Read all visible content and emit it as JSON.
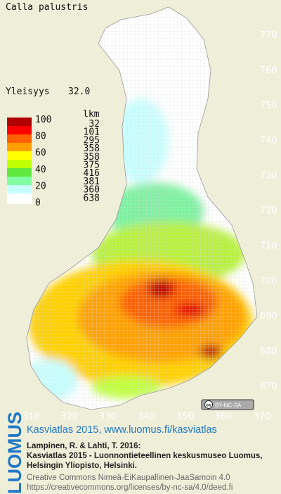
{
  "title": "Calla palustris",
  "frequency": {
    "label": "Yleisyys",
    "value": "32.0"
  },
  "legend": {
    "scale_labels": [
      "100",
      "80",
      "60",
      "40",
      "20",
      "0"
    ],
    "count_header": "lkm",
    "counts": [
      "32",
      "101",
      "295",
      "358",
      "358",
      "375",
      "416",
      "381",
      "360",
      "638"
    ]
  },
  "grid_north": [
    "770",
    "760",
    "750",
    "740",
    "730",
    "720",
    "710",
    "700",
    "690",
    "680",
    "670"
  ],
  "grid_east": [
    "310",
    "320",
    "330",
    "340",
    "350",
    "360",
    "370"
  ],
  "license_badge": "BY-NC-SA",
  "footer": {
    "logo": "LUOMUS",
    "link": "Kasviatlas 2015, www.luomus.fi/kasviatlas",
    "citation": [
      "Lampinen, R. & Lahti, T. 2016:",
      "Kasviatlas 2015 - Luonnontieteellinen keskusmuseo Luomus,",
      "Helsingin Yliopisto, Helsinki."
    ],
    "license": [
      "Creative Commons Nimeä-EiKaupallinen-JaaSamoin 4.0",
      "https://creativecommons.org/licenses/by-nc-sa/4.0/deed.fi"
    ]
  }
}
